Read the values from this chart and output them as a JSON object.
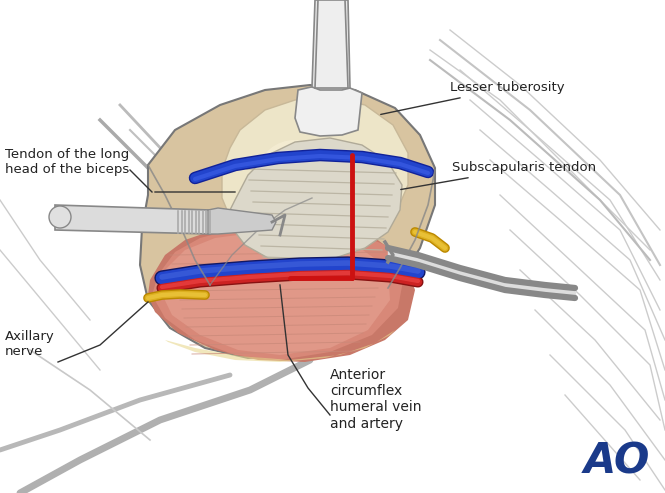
{
  "bg_color": "#ffffff",
  "ao_color": "#1a3a8a",
  "labels": {
    "lesser_tuberosity": "Lesser tuberosity",
    "subscapularis_tendon": "Subscapularis tendon",
    "tendon_long_head": "Tendon of the long\nhead of the biceps",
    "axillary_nerve": "Axillary\nnerve",
    "anterior_circumflex": "Anterior\ncircumflex\nhumeral vein\nand artery"
  },
  "colors": {
    "skin_outer": "#d4b896",
    "skin_inner": "#c9a882",
    "muscle_pink": "#d4867a",
    "muscle_mid": "#c07060",
    "muscle_deep": "#b86858",
    "fat_yellow": "#e8d890",
    "bone_cream": "#ece0c0",
    "bone_light": "#f5edd5",
    "tendon_gray": "#d8d2c0",
    "tendon_stripe": "#c8c2b0",
    "vein_blue": "#2244bb",
    "vein_dark": "#112288",
    "artery_red": "#cc2020",
    "artery_light": "#ee4040",
    "nerve_yellow": "#ddb020",
    "nerve_light": "#eec840",
    "incision_red": "#cc1111",
    "line_dark": "#444444",
    "line_med": "#777777",
    "line_light": "#aaaaaa",
    "retractor_light": "#e8e8e8",
    "retractor_mid": "#cccccc",
    "retractor_dark": "#999999",
    "bg_tissue": "#c8c8c8",
    "bg_tissue2": "#b8b8b8"
  },
  "fontsize_label": 9.5,
  "fontsize_ao": 30
}
